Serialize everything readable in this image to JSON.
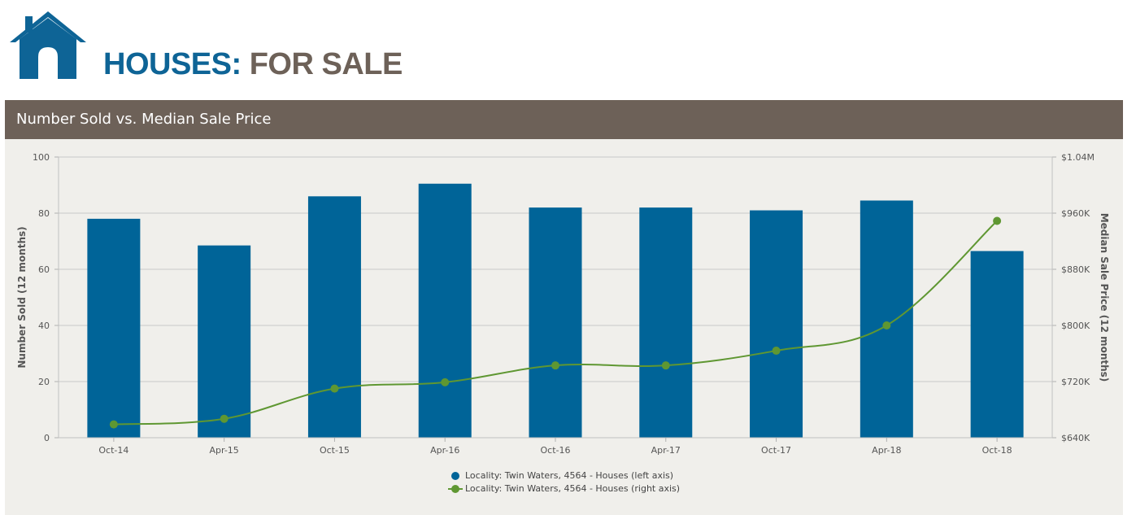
{
  "brand": {
    "word1": "HOUSES:",
    "word2": "FOR SALE"
  },
  "panel": {
    "title": "Number Sold vs. Median Sale Price"
  },
  "colors": {
    "bar": "#006498",
    "line": "#5f9732",
    "header_bar": "#6d6158",
    "brand_blue": "#0e6496",
    "brand_grey": "#6d6158"
  },
  "chart_data": {
    "type": "bar",
    "categories": [
      "Oct-14",
      "Apr-15",
      "Oct-15",
      "Apr-16",
      "Oct-16",
      "Apr-17",
      "Oct-17",
      "Apr-18",
      "Oct-18"
    ],
    "series": [
      {
        "name": "Locality: Twin Waters, 4564 - Houses (left axis)",
        "type": "bar",
        "axis": "left",
        "values": [
          78,
          68.5,
          86,
          90.5,
          82,
          82,
          81,
          84.5,
          66.5
        ]
      },
      {
        "name": "Locality: Twin Waters, 4564 - Houses (right axis)",
        "type": "line",
        "axis": "right",
        "values": [
          659000,
          667000,
          710000,
          719000,
          743000,
          743000,
          764000,
          800000,
          949000
        ]
      }
    ],
    "ylabel": "Number Sold (12 months)",
    "y2label": "Median Sale Price (12 months)",
    "ylim": [
      0,
      100
    ],
    "y2lim": [
      640000,
      1040000
    ],
    "yticks": [
      "0",
      "20",
      "40",
      "60",
      "80",
      "100"
    ],
    "y2ticks": [
      "$640K",
      "$720K",
      "$800K",
      "$880K",
      "$960K",
      "$1.04M"
    ],
    "grid": true,
    "legend": "bottom-center"
  }
}
